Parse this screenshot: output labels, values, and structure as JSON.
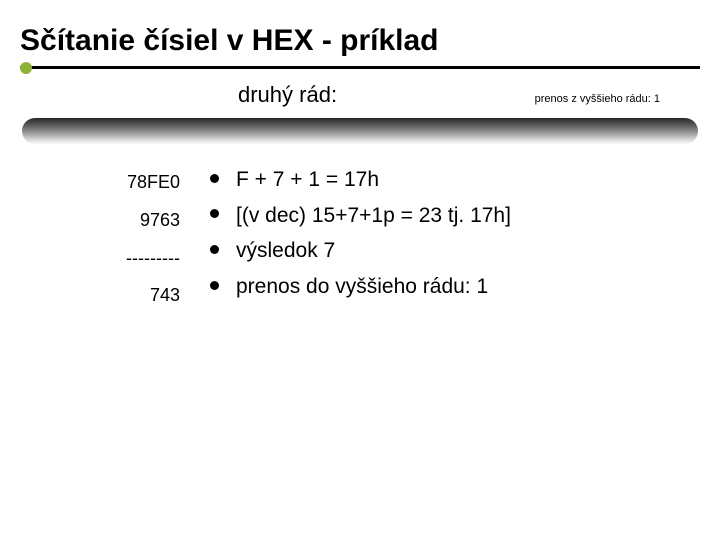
{
  "title": "Sčítanie čísiel v HEX - príklad",
  "subtitle": "druhý rád:",
  "carry_note": "prenos z vyššieho rádu: 1",
  "numbers": {
    "rows": [
      "78FE0",
      "9763",
      "---------",
      "743"
    ]
  },
  "bullets": {
    "items": [
      "F + 7 + 1 = 17h",
      "[(v dec) 15+7+1p = 23  tj. 17h]",
      "výsledok 7",
      "prenos do vyššieho rádu: 1"
    ]
  },
  "colors": {
    "accent_green": "#8fb23a",
    "text": "#000000",
    "background": "#ffffff"
  }
}
